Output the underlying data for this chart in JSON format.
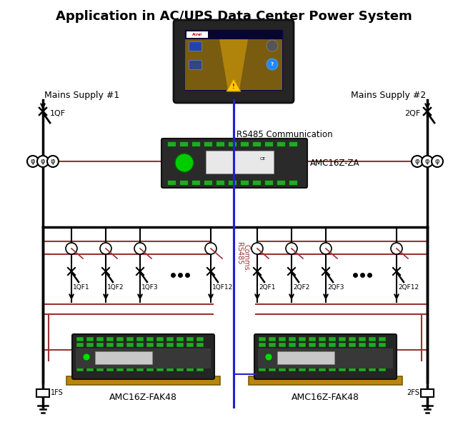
{
  "title": "Application in AC/UPS Data Center Power System",
  "title_fontsize": 13,
  "title_fontweight": "bold",
  "bg_color": "#ffffff",
  "black": "#000000",
  "red": "#993333",
  "blue": "#2222cc",
  "dark_gray": "#2e2e2e",
  "green_term": "#22aa22",
  "din_gold": "#b8860b",
  "labels": {
    "mains1": "Mains Supply #1",
    "mains2": "Mains Supply #2",
    "qf1": "1QF",
    "qf2": "2QF",
    "rs485_comm": "RS485 Communication",
    "amc_za": "AMC16Z-ZA",
    "rs485_comms": "RS485\nComms.",
    "fak1": "AMC16Z-FAK48",
    "fak2": "AMC16Z-FAK48",
    "breakers_left": [
      "1QF1",
      "1QF2",
      "1QF3",
      "1QF12"
    ],
    "breakers_right": [
      "2QF1",
      "2QF2",
      "2QF3",
      "2QF12"
    ],
    "fs1": "1FS",
    "fs2": "2FS"
  },
  "figsize": [
    6.55,
    6.26
  ],
  "dpi": 100
}
